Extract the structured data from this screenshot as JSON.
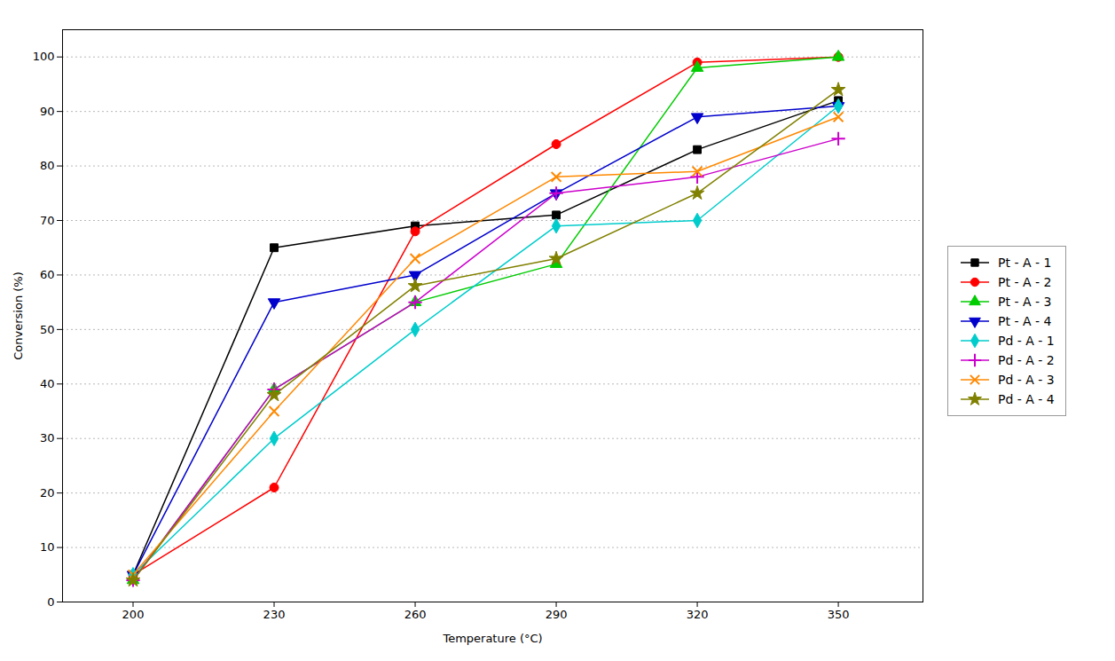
{
  "chart_data": {
    "type": "line",
    "xlabel": "Temperature (°C)",
    "ylabel": "Conversion (%)",
    "x": [
      200,
      230,
      260,
      290,
      320,
      350
    ],
    "series": [
      {
        "name": "Pt - A - 1",
        "color": "#000000",
        "marker": "square",
        "values": [
          5,
          65,
          69,
          71,
          83,
          92
        ]
      },
      {
        "name": "Pt - A - 2",
        "color": "#ff0000",
        "marker": "circle",
        "values": [
          5,
          21,
          68,
          84,
          99,
          100
        ]
      },
      {
        "name": "Pt - A - 3",
        "color": "#00cc00",
        "marker": "triangle-up",
        "values": [
          4,
          39,
          55,
          62,
          98,
          100
        ]
      },
      {
        "name": "Pt - A - 4",
        "color": "#0000cc",
        "marker": "triangle-down",
        "values": [
          5,
          55,
          60,
          75,
          89,
          91
        ]
      },
      {
        "name": "Pd - A - 1",
        "color": "#00cccc",
        "marker": "diamond",
        "values": [
          5,
          30,
          50,
          69,
          70,
          91
        ]
      },
      {
        "name": "Pd - A - 2",
        "color": "#cc00cc",
        "marker": "plus",
        "values": [
          4,
          39,
          55,
          75,
          78,
          85
        ]
      },
      {
        "name": "Pd - A - 3",
        "color": "#ff8800",
        "marker": "x",
        "values": [
          5,
          35,
          63,
          78,
          79,
          89
        ]
      },
      {
        "name": "Pd - A - 4",
        "color": "#808000",
        "marker": "star",
        "values": [
          4,
          38,
          58,
          63,
          75,
          94
        ]
      }
    ],
    "xlim": [
      185,
      368
    ],
    "ylim": [
      0,
      105
    ],
    "xticks": [
      200,
      230,
      260,
      290,
      320,
      350
    ],
    "yticks": [
      0,
      10,
      20,
      30,
      40,
      50,
      60,
      70,
      80,
      90,
      100
    ],
    "grid": "y",
    "legend": "right"
  }
}
